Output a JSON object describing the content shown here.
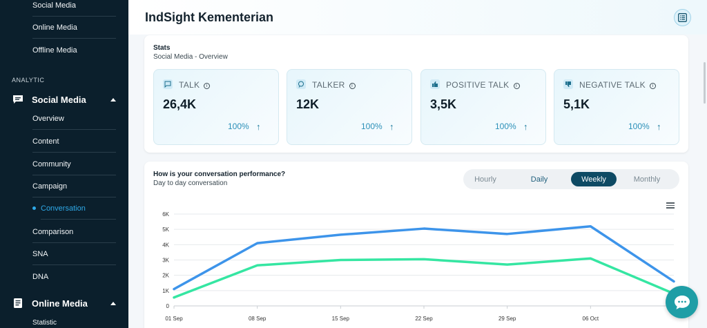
{
  "sidebar": {
    "top_items": [
      "Social Media",
      "Online Media",
      "Offline Media"
    ],
    "section_label": "ANALYTIC",
    "group_social": "Social Media",
    "social_items": [
      "Overview",
      "Content",
      "Community",
      "Campaign",
      "Conversation",
      "Comparison",
      "SNA",
      "DNA"
    ],
    "active_item": "Conversation",
    "group_online": "Online Media",
    "online_partial": "Statistic"
  },
  "header": {
    "title": "IndSight Kementerian"
  },
  "stats": {
    "title": "Stats",
    "subtitle": "Social Media - Overview",
    "cards": [
      {
        "label": "TALK",
        "value": "26,4K",
        "percent": "100%",
        "icon": "chat-square-icon"
      },
      {
        "label": "TALKER",
        "value": "12K",
        "percent": "100%",
        "icon": "chat-bubble-icon"
      },
      {
        "label": "POSITIVE TALK",
        "value": "3,5K",
        "percent": "100%",
        "icon": "thumbs-up-icon"
      },
      {
        "label": "NEGATIVE TALK",
        "value": "5,1K",
        "percent": "100%",
        "icon": "thumbs-down-icon"
      }
    ]
  },
  "performance": {
    "title": "How is your conversation performance?",
    "subtitle": "Day to day conversation",
    "tabs": [
      "Hourly",
      "Daily",
      "Weekly",
      "Monthly"
    ],
    "selected_tab": "Weekly"
  },
  "colors": {
    "series_blue": "#3d94ea",
    "series_green": "#35e6a2",
    "accent": "#0e4a64"
  },
  "chart_data": {
    "type": "line",
    "categories": [
      "01 Sep",
      "08 Sep",
      "15 Sep",
      "22 Sep",
      "29 Sep",
      "06 Oct",
      ""
    ],
    "yticks": [
      "0",
      "1K",
      "2K",
      "3K",
      "4K",
      "5K",
      "6K"
    ],
    "ylim": [
      0,
      6000
    ],
    "grid": true,
    "series": [
      {
        "color": "#3d94ea",
        "values": [
          1100,
          4100,
          4650,
          5050,
          4700,
          5200,
          1600
        ]
      },
      {
        "color": "#35e6a2",
        "values": [
          550,
          2650,
          3000,
          3050,
          2700,
          3100,
          800
        ]
      }
    ]
  }
}
